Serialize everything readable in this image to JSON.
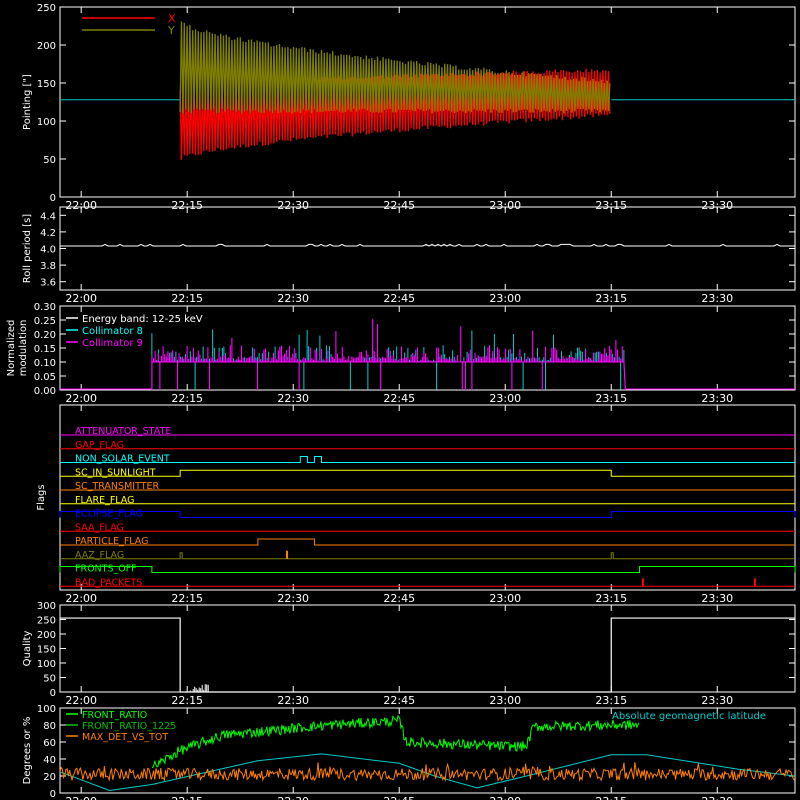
{
  "time_ticks": [
    "22:00",
    "22:15",
    "22:30",
    "22:45",
    "23:00",
    "23:15",
    "23:30"
  ],
  "colors": {
    "background": "#000000",
    "axes": "#ffffff",
    "x_pointing": "#ff0000",
    "y_pointing": "#808000",
    "collimator_8": "#00ffff",
    "collimator_9": "#ff00ff",
    "front_ratio": "#00ff00",
    "front_ratio_1225": "#00c000",
    "max_det_vs_tot": "#ff8000",
    "geomag": "#00cccc"
  },
  "chart_data": [
    {
      "id": "pointing",
      "type": "line",
      "ylabel": "Pointing [\"]",
      "ylim": [
        0,
        250
      ],
      "yticks": [
        0,
        50,
        100,
        150,
        200,
        250
      ],
      "legend": [
        "X",
        "Y"
      ],
      "legend_placement": "top-left",
      "baseline": 128,
      "active_range": [
        "22:14",
        "23:15"
      ],
      "series": [
        {
          "name": "X",
          "start": {
            "min": 45,
            "max": 145
          },
          "end": {
            "min": 105,
            "max": 170
          }
        },
        {
          "name": "Y",
          "start": {
            "min": 110,
            "max": 235
          },
          "end": {
            "min": 110,
            "max": 155
          }
        }
      ]
    },
    {
      "id": "roll",
      "type": "line",
      "ylabel": "Roll period [s]",
      "ylim": [
        3.5,
        4.5
      ],
      "yticks": [
        "3.6",
        "3.8",
        "4.0",
        "4.2",
        "4.4"
      ],
      "value": 4.03
    },
    {
      "id": "modulation",
      "type": "bar",
      "ylabel_line1": "Normalized",
      "ylabel_line2": "modulation",
      "ylim": [
        0,
        0.3
      ],
      "yticks": [
        "0.00",
        "0.05",
        "0.10",
        "0.15",
        "0.20",
        "0.25",
        "0.30"
      ],
      "legend": [
        "Energy band: 12-25 keV",
        "Collimator 8",
        "Collimator 9"
      ],
      "active_range": [
        "22:10",
        "23:17"
      ],
      "base_level": 0.1
    },
    {
      "id": "flags",
      "type": "line",
      "ylabel": "Flags",
      "flags": [
        {
          "name": "ATTENUATOR_STATE",
          "color": "#ff00ff",
          "on": []
        },
        {
          "name": "GAP_FLAG",
          "color": "#ff0000",
          "on": []
        },
        {
          "name": "NON_SOLAR_EVENT",
          "color": "#00ffff",
          "on": [
            [
              "22:31",
              "22:32"
            ],
            [
              "22:33",
              "22:34"
            ]
          ]
        },
        {
          "name": "SC_IN_SUNLIGHT",
          "color": "#ffff00",
          "on": [
            [
              "22:14",
              "23:15"
            ]
          ]
        },
        {
          "name": "SC_TRANSMITTER",
          "color": "#ff8000",
          "on": []
        },
        {
          "name": "FLARE_FLAG",
          "color": "#ffff00",
          "on": []
        },
        {
          "name": "ECLIPSE_FLAG",
          "color": "#0000ff",
          "on": [
            [
              "21:57",
              "22:14"
            ],
            [
              "23:15",
              "23:41"
            ]
          ]
        },
        {
          "name": "SAA_FLAG",
          "color": "#ff0000",
          "on": []
        },
        {
          "name": "PARTICLE_FLAG",
          "color": "#ff8000",
          "on": [
            [
              "22:25",
              "22:33"
            ]
          ]
        },
        {
          "name": "AAZ_FLAG",
          "color": "#808000",
          "on": [
            [
              "22:14",
              "22:14"
            ],
            [
              "23:15",
              "23:15"
            ]
          ]
        },
        {
          "name": "FRONTS_OFF",
          "color": "#00ff00",
          "on": [
            [
              "21:57",
              "22:10"
            ],
            [
              "23:19",
              "23:41"
            ]
          ]
        },
        {
          "name": "BAD_PACKETS",
          "color": "#ff0000",
          "on": []
        }
      ]
    },
    {
      "id": "quality",
      "type": "line",
      "ylabel": "Quality",
      "ylim": [
        0,
        300
      ],
      "yticks": [
        0,
        50,
        100,
        150,
        200,
        250,
        300
      ],
      "high_value": 255,
      "high_ranges": [
        [
          "21:57",
          "22:14"
        ],
        [
          "23:15",
          "23:41"
        ]
      ]
    },
    {
      "id": "ratios",
      "type": "line",
      "ylabel": "Degrees or %",
      "ylim": [
        0,
        100
      ],
      "yticks": [
        0,
        20,
        40,
        60,
        80,
        100
      ],
      "legend": [
        "FRONT_RATIO",
        "FRONT_RATIO_1225",
        "MAX_DET_VS_TOT"
      ],
      "annotation": "Absolute geomagnetic latitude",
      "series": [
        {
          "name": "FRONT_RATIO",
          "segments": [
            [
              [
                "22:10",
                30
              ],
              [
                "22:14",
                50
              ],
              [
                "22:20",
                68
              ],
              [
                "22:35",
                80
              ],
              [
                "22:45",
                85
              ],
              [
                "22:46",
                60
              ],
              [
                "23:00",
                55
              ],
              [
                "23:03",
                55
              ],
              [
                "23:04",
                78
              ],
              [
                "23:15",
                80
              ],
              [
                "23:19",
                80
              ]
            ]
          ]
        },
        {
          "name": "MAX_DET_VS_TOT",
          "segments": [
            [
              [
                "21:57",
                22
              ],
              [
                "23:41",
                22
              ]
            ]
          ]
        },
        {
          "name": "Absolute geomagnetic latitude",
          "segments": [
            [
              [
                "21:57",
                25
              ],
              [
                "22:04",
                3
              ],
              [
                "22:10",
                10
              ],
              [
                "22:25",
                38
              ],
              [
                "22:34",
                46
              ],
              [
                "22:45",
                35
              ],
              [
                "22:50",
                20
              ],
              [
                "22:56",
                6
              ],
              [
                "23:03",
                20
              ],
              [
                "23:15",
                45
              ],
              [
                "23:20",
                45
              ],
              [
                "23:33",
                28
              ],
              [
                "23:41",
                20
              ]
            ]
          ]
        }
      ]
    }
  ]
}
